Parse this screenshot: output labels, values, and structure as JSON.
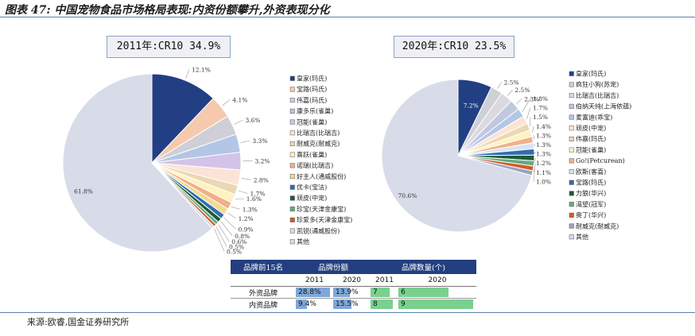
{
  "title": "图表47:中国宠物食品市场格局表现:内资份额攀升,外资表现分化",
  "title_parts": {
    "lead": "图表 47: ",
    "main": "中国宠物食品市场格局表现:内资份额攀升,外资表现分化"
  },
  "source": "来源:欧睿,国金证券研究所",
  "chart_data": [
    {
      "type": "pie",
      "title": "2011年:CR10 34.9%",
      "labels": [
        "皇家(玛氏)",
        "宝路(玛氏)",
        "伟嘉(玛氏)",
        "康多乐(雀巢)",
        "冠能(雀巢)",
        "比瑞吉(比瑞吉)",
        "耐威克(耐威克)",
        "喜跃(雀巢)",
        "诺瑞(比瑞吉)",
        "好主人(通威股份)",
        "优卡(宝洁)",
        "顽皮(中宠)",
        "珍宝(天津金康宝)",
        "珍爱多(天津金康宝)",
        "凯锐(通威股份)",
        "其他"
      ],
      "values": [
        12.1,
        4.1,
        3.6,
        3.3,
        3.2,
        2.8,
        1.7,
        1.6,
        1.3,
        1.2,
        0.9,
        0.8,
        0.6,
        0.5,
        0.5,
        61.8
      ],
      "value_labels": [
        "12.1%",
        "4.1%",
        "3.6%",
        "3.3%",
        "3.2%",
        "2.8%",
        "1.7%",
        "1.6%",
        "1.3%",
        "1.2%",
        "0.9%",
        "0.8%",
        "0.6%",
        "0.5%",
        "0.5%",
        "61.8%"
      ],
      "colors": [
        "#233f84",
        "#f6c9ae",
        "#cfcfd7",
        "#b3c6e6",
        "#d3c3e8",
        "#fbe3d6",
        "#ead8b4",
        "#fff2c0",
        "#f2b089",
        "#f0db92",
        "#2f6db0",
        "#1f5b38",
        "#65aa7e",
        "#d35a2a",
        "#d4d8e6",
        "#d8dbe8"
      ]
    },
    {
      "type": "pie",
      "title": "2020年:CR10 23.5%",
      "labels": [
        "皇家(玛氏)",
        "疯狂小狗(苏宠)",
        "比瑞吉(比瑞吉)",
        "伯纳天纯(上海依蕴)",
        "麦富迪(乖宝)",
        "顽皮(中宠)",
        "伟嘉(玛氏)",
        "冠能(雀巢)",
        "Go!(Petcurean)",
        "欧斯(客喜)",
        "宝路(玛氏)",
        "力狼(华兴)",
        "渴望(冠军)",
        "奥丁(华兴)",
        "耐威克(耐威克)",
        "其他"
      ],
      "values": [
        7.2,
        2.5,
        2.5,
        2.3,
        1.8,
        1.7,
        1.5,
        1.4,
        1.3,
        1.3,
        1.3,
        1.2,
        1.1,
        1.0,
        1.0,
        70.6
      ],
      "value_labels": [
        "7.2%",
        "2.5%",
        "2.5%",
        "2.3%",
        "1.8%",
        "1.7%",
        "1.5%",
        "1.4%",
        "1.3%",
        "1.3%",
        "1.3%",
        "1.2%",
        "1.1%",
        "1.0%",
        "",
        ""
      ],
      "other_label": "70.6%",
      "colors": [
        "#233f84",
        "#cfcfd7",
        "#d9d9df",
        "#c2c7e0",
        "#b3c6e6",
        "#fde3d2",
        "#ead8b4",
        "#fff2c0",
        "#f2b089",
        "#d9e3f4",
        "#2f6db0",
        "#1f5b38",
        "#65aa7e",
        "#d35a2a",
        "#9aa4c0",
        "#d8dbe8"
      ]
    }
  ],
  "table": {
    "header": {
      "col1": "品牌前15名",
      "col2": "品牌份额",
      "col3": "品牌数量(个)"
    },
    "subheader": {
      "y1": "2011",
      "y2": "2020",
      "y3": "2011",
      "y4": "2020"
    },
    "rows": [
      {
        "label": "外资品牌",
        "share_2011": "28.8%",
        "share_2020": "13.9%",
        "share_2011_val": 28.8,
        "share_2020_val": 13.9,
        "count_2011": "7",
        "count_2020": "6",
        "count_2011_val": 7,
        "count_2020_val": 6
      },
      {
        "label": "内资品牌",
        "share_2011": "9.4%",
        "share_2020": "15.5%",
        "share_2011_val": 9.4,
        "share_2020_val": 15.5,
        "count_2011": "8",
        "count_2020": "9",
        "count_2011_val": 8,
        "count_2020_val": 9
      }
    ]
  }
}
